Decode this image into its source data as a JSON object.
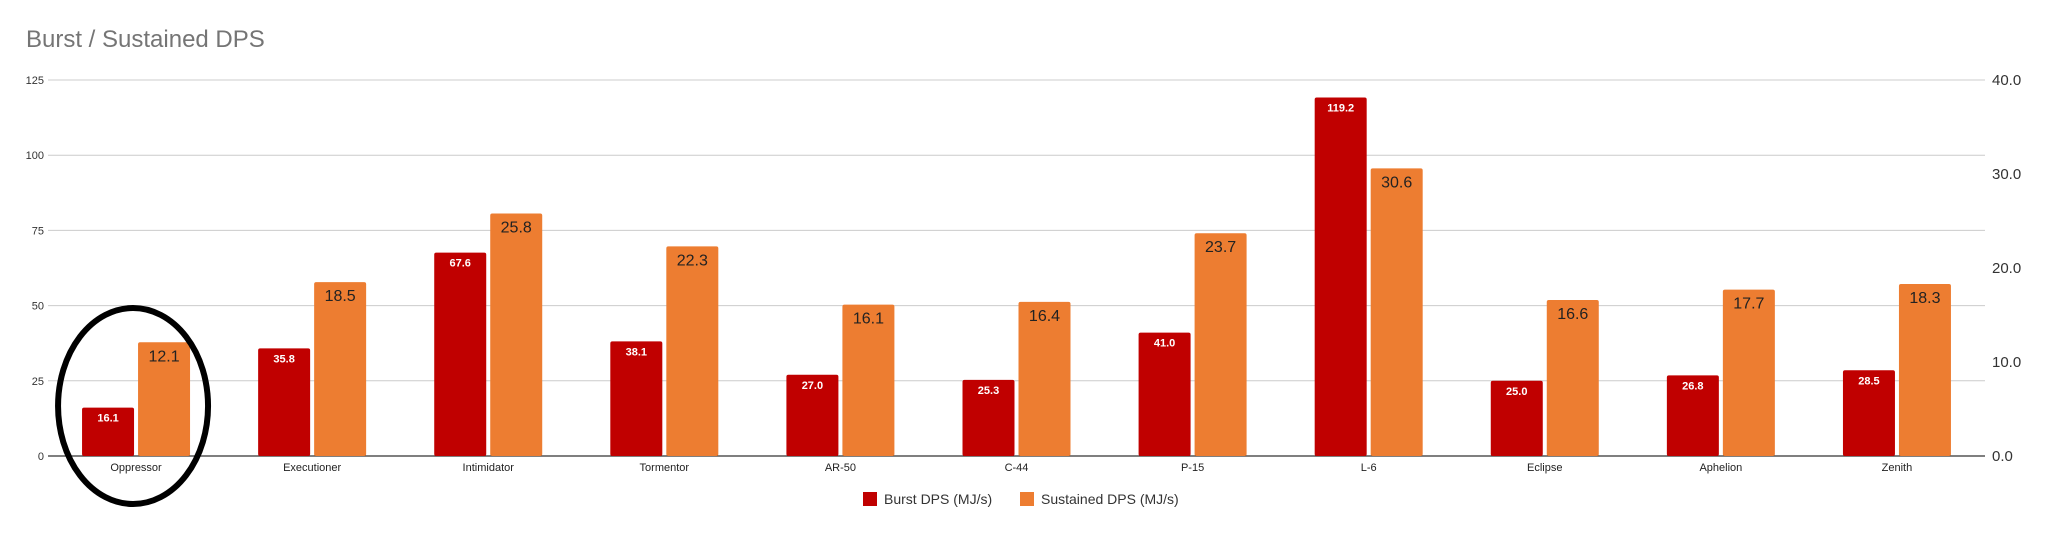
{
  "chart_data": {
    "type": "bar",
    "title": "Burst / Sustained DPS",
    "categories": [
      "Oppressor",
      "Executioner",
      "Intimidator",
      "Tormentor",
      "AR-50",
      "C-44",
      "P-15",
      "L-6",
      "Eclipse",
      "Aphelion",
      "Zenith"
    ],
    "series": [
      {
        "name": "Burst DPS (MJ/s)",
        "axis": "left",
        "color": "#c00000",
        "values": [
          16.1,
          35.8,
          67.6,
          38.1,
          27.0,
          25.3,
          41.0,
          119.2,
          25.0,
          26.8,
          28.5
        ],
        "labels": [
          "16.1",
          "35.8",
          "67.6",
          "38.1",
          "27.0",
          "25.3",
          "41.0",
          "119.2",
          "25.0",
          "26.8",
          "28.5"
        ]
      },
      {
        "name": "Sustained DPS (MJ/s)",
        "axis": "right",
        "color": "#ed7d31",
        "values": [
          12.1,
          18.5,
          25.8,
          22.3,
          16.1,
          16.4,
          23.7,
          30.6,
          16.6,
          17.7,
          18.3
        ],
        "labels": [
          "12.1",
          "18.5",
          "25.8",
          "22.3",
          "16.1",
          "16.4",
          "23.7",
          "30.6",
          "16.6",
          "17.7",
          "18.3"
        ]
      }
    ],
    "left_axis": {
      "ylim": [
        0,
        125
      ],
      "ticks": [
        "0",
        "25",
        "50",
        "75",
        "100",
        "125"
      ],
      "values": [
        0,
        25,
        50,
        75,
        100,
        125
      ]
    },
    "right_axis": {
      "ylim": [
        0,
        40
      ],
      "ticks": [
        "0.0",
        "10.0",
        "20.0",
        "30.0",
        "40.0"
      ],
      "values": [
        0,
        10,
        20,
        30,
        40
      ]
    },
    "grid": true,
    "legend": "bottom-center",
    "annotation": {
      "type": "ellipse",
      "target_category": "Oppressor",
      "color": "#000000"
    }
  }
}
